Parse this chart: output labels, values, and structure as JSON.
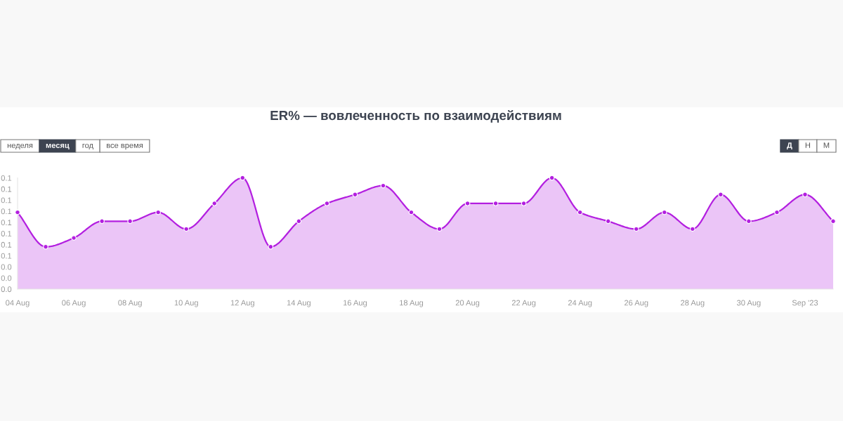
{
  "chart_data": {
    "type": "area",
    "title": "ER% — вовлеченность по взаимодействиям",
    "annotations": [
      "неделя",
      "месяц",
      "год",
      "все время",
      "Д",
      "Н",
      "М"
    ],
    "x": [
      "2023-08-04",
      "2023-08-05",
      "2023-08-06",
      "2023-08-07",
      "2023-08-08",
      "2023-08-09",
      "2023-08-10",
      "2023-08-11",
      "2023-08-12",
      "2023-08-13",
      "2023-08-14",
      "2023-08-15",
      "2023-08-16",
      "2023-08-17",
      "2023-08-18",
      "2023-08-19",
      "2023-08-20",
      "2023-08-21",
      "2023-08-22",
      "2023-08-23",
      "2023-08-24",
      "2023-08-25",
      "2023-08-26",
      "2023-08-27",
      "2023-08-28",
      "2023-08-29",
      "2023-08-30",
      "2023-08-31",
      "2023-09-01",
      "2023-09-02"
    ],
    "series": [
      {
        "color": "#b31fe0",
        "values": [
          0.089,
          0.058,
          0.066,
          0.081,
          0.081,
          0.089,
          0.074,
          0.097,
          0.12,
          0.058,
          0.081,
          0.097,
          0.105,
          0.113,
          0.089,
          0.074,
          0.097,
          0.097,
          0.097,
          0.12,
          0.089,
          0.081,
          0.074,
          0.089,
          0.074,
          0.105,
          0.081,
          0.089,
          0.105,
          0.081
        ]
      }
    ],
    "xlim": [
      "2023-08-04",
      "2023-09-02"
    ],
    "xticks": [
      {
        "value": "2023-08-04",
        "label": "04 Aug"
      },
      {
        "value": "2023-08-06",
        "label": "06 Aug"
      },
      {
        "value": "2023-08-08",
        "label": "08 Aug"
      },
      {
        "value": "2023-08-10",
        "label": "10 Aug"
      },
      {
        "value": "2023-08-12",
        "label": "12 Aug"
      },
      {
        "value": "2023-08-14",
        "label": "14 Aug"
      },
      {
        "value": "2023-08-16",
        "label": "16 Aug"
      },
      {
        "value": "2023-08-18",
        "label": "18 Aug"
      },
      {
        "value": "2023-08-20",
        "label": "20 Aug"
      },
      {
        "value": "2023-08-22",
        "label": "22 Aug"
      },
      {
        "value": "2023-08-24",
        "label": "24 Aug"
      },
      {
        "value": "2023-08-26",
        "label": "26 Aug"
      },
      {
        "value": "2023-08-28",
        "label": "28 Aug"
      },
      {
        "value": "2023-08-30",
        "label": "30 Aug"
      },
      {
        "value": "2023-09-01",
        "label": "Sep '23"
      }
    ],
    "ylim": [
      0.02,
      0.12
    ],
    "yticks": [
      {
        "value": 0.02,
        "label": "0.0"
      },
      {
        "value": 0.03,
        "label": "0.0"
      },
      {
        "value": 0.04,
        "label": "0.0"
      },
      {
        "value": 0.05,
        "label": "0.1"
      },
      {
        "value": 0.06,
        "label": "0.1"
      },
      {
        "value": 0.07,
        "label": "0.1"
      },
      {
        "value": 0.08,
        "label": "0.1"
      },
      {
        "value": 0.09,
        "label": "0.1"
      },
      {
        "value": 0.1,
        "label": "0.1"
      },
      {
        "value": 0.11,
        "label": "0.1"
      },
      {
        "value": 0.12,
        "label": "0.1"
      }
    ],
    "marker": "circle",
    "line_style": "solid"
  }
}
